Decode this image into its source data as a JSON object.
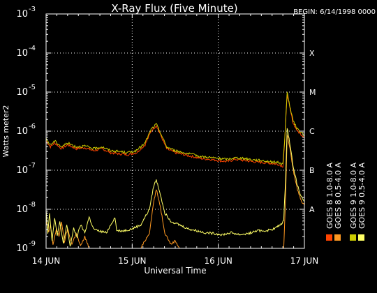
{
  "chart_data": {
    "type": "line",
    "title": "X-Ray Flux (Five Minute)",
    "begin_label": "BEGIN: 6/14/1998 0000",
    "xlabel": "Universal Time",
    "ylabel": "Watts meter2",
    "x_ticks": [
      {
        "day": 0,
        "label": "14 JUN"
      },
      {
        "day": 1,
        "label": "15 JUN"
      },
      {
        "day": 2,
        "label": "16 JUN"
      },
      {
        "day": 3,
        "label": "17 JUN"
      }
    ],
    "y_log_range": [
      -9,
      -3
    ],
    "y_ticks": [
      {
        "exp": -9,
        "base": "10",
        "power": "-9"
      },
      {
        "exp": -8,
        "base": "10",
        "power": "-8"
      },
      {
        "exp": -7,
        "base": "10",
        "power": "-7"
      },
      {
        "exp": -6,
        "base": "10",
        "power": "-6"
      },
      {
        "exp": -5,
        "base": "10",
        "power": "-5"
      },
      {
        "exp": -4,
        "base": "10",
        "power": "-4"
      },
      {
        "exp": -3,
        "base": "10",
        "power": "-3"
      }
    ],
    "flare_classes": [
      {
        "exp": -8,
        "label": "A"
      },
      {
        "exp": -7,
        "label": "B"
      },
      {
        "exp": -6,
        "label": "C"
      },
      {
        "exp": -5,
        "label": "M"
      },
      {
        "exp": -4,
        "label": "X"
      }
    ],
    "grid_y": [
      -8,
      -7,
      -6,
      -5,
      -4
    ],
    "grid_x_days": [
      1,
      2
    ],
    "legend": [
      {
        "label": "GOES 8  1.0-8.0 A",
        "color": "#ff4400"
      },
      {
        "label": "GOES 8  0.5-4.0 A",
        "color": "#ff9922"
      },
      {
        "label": "GOES 9  1.0-8.0 A",
        "color": "#cccc00"
      },
      {
        "label": "GOES 9  0.5-4.0 A",
        "color": "#ffff66"
      }
    ],
    "series": [
      {
        "name": "GOES 8  1.0-8.0 A",
        "color": "#ff4400",
        "points": [
          [
            0.0,
            -6.25
          ],
          [
            0.05,
            -6.4
          ],
          [
            0.1,
            -6.3
          ],
          [
            0.18,
            -6.45
          ],
          [
            0.25,
            -6.35
          ],
          [
            0.35,
            -6.45
          ],
          [
            0.45,
            -6.42
          ],
          [
            0.55,
            -6.5
          ],
          [
            0.65,
            -6.45
          ],
          [
            0.75,
            -6.55
          ],
          [
            0.85,
            -6.58
          ],
          [
            0.95,
            -6.6
          ],
          [
            1.05,
            -6.55
          ],
          [
            1.15,
            -6.35
          ],
          [
            1.22,
            -6.0
          ],
          [
            1.28,
            -5.85
          ],
          [
            1.32,
            -6.05
          ],
          [
            1.4,
            -6.45
          ],
          [
            1.5,
            -6.55
          ],
          [
            1.6,
            -6.6
          ],
          [
            1.7,
            -6.65
          ],
          [
            1.8,
            -6.7
          ],
          [
            1.9,
            -6.72
          ],
          [
            2.0,
            -6.75
          ],
          [
            2.1,
            -6.78
          ],
          [
            2.2,
            -6.72
          ],
          [
            2.3,
            -6.75
          ],
          [
            2.4,
            -6.78
          ],
          [
            2.5,
            -6.8
          ],
          [
            2.6,
            -6.82
          ],
          [
            2.7,
            -6.85
          ],
          [
            2.75,
            -6.9
          ],
          [
            2.77,
            -6.3
          ],
          [
            2.8,
            -5.05
          ],
          [
            2.83,
            -5.4
          ],
          [
            2.87,
            -5.8
          ],
          [
            2.92,
            -6.0
          ],
          [
            2.97,
            -6.1
          ],
          [
            3.0,
            -6.15
          ]
        ]
      },
      {
        "name": "GOES 8  0.5-4.0 A",
        "color": "#ff9922",
        "points": [
          [
            0.0,
            -8.3
          ],
          [
            0.03,
            -8.6
          ],
          [
            0.05,
            -8.4
          ],
          [
            0.08,
            -8.9
          ],
          [
            0.12,
            -8.5
          ],
          [
            0.15,
            -8.7
          ],
          [
            0.18,
            -8.3
          ],
          [
            0.21,
            -8.85
          ],
          [
            0.25,
            -8.5
          ],
          [
            0.3,
            -8.9
          ],
          [
            0.35,
            -8.6
          ],
          [
            0.4,
            -8.95
          ],
          [
            0.45,
            -8.7
          ],
          [
            0.5,
            -9.0
          ],
          [
            0.55,
            -9.0
          ],
          [
            1.0,
            -9.0
          ],
          [
            1.1,
            -9.0
          ],
          [
            1.2,
            -8.6
          ],
          [
            1.25,
            -7.8
          ],
          [
            1.28,
            -7.5
          ],
          [
            1.32,
            -7.85
          ],
          [
            1.38,
            -8.6
          ],
          [
            1.45,
            -8.9
          ],
          [
            1.5,
            -8.8
          ],
          [
            1.55,
            -9.0
          ],
          [
            1.6,
            -9.0
          ],
          [
            2.76,
            -9.0
          ],
          [
            2.78,
            -7.8
          ],
          [
            2.8,
            -6.1
          ],
          [
            2.83,
            -6.4
          ],
          [
            2.87,
            -7.0
          ],
          [
            2.92,
            -7.5
          ],
          [
            2.97,
            -7.8
          ],
          [
            3.0,
            -7.9
          ]
        ]
      },
      {
        "name": "GOES 9  1.0-8.0 A",
        "color": "#cccc00",
        "points": [
          [
            0.0,
            -6.2
          ],
          [
            0.05,
            -6.35
          ],
          [
            0.1,
            -6.25
          ],
          [
            0.18,
            -6.4
          ],
          [
            0.25,
            -6.3
          ],
          [
            0.35,
            -6.4
          ],
          [
            0.45,
            -6.38
          ],
          [
            0.55,
            -6.45
          ],
          [
            0.65,
            -6.4
          ],
          [
            0.75,
            -6.5
          ],
          [
            0.85,
            -6.52
          ],
          [
            0.95,
            -6.55
          ],
          [
            1.05,
            -6.5
          ],
          [
            1.15,
            -6.3
          ],
          [
            1.22,
            -5.95
          ],
          [
            1.28,
            -5.82
          ],
          [
            1.32,
            -6.0
          ],
          [
            1.4,
            -6.4
          ],
          [
            1.5,
            -6.5
          ],
          [
            1.6,
            -6.55
          ],
          [
            1.7,
            -6.6
          ],
          [
            1.8,
            -6.65
          ],
          [
            1.9,
            -6.67
          ],
          [
            2.0,
            -6.7
          ],
          [
            2.1,
            -6.72
          ],
          [
            2.2,
            -6.68
          ],
          [
            2.3,
            -6.7
          ],
          [
            2.4,
            -6.73
          ],
          [
            2.5,
            -6.75
          ],
          [
            2.6,
            -6.78
          ],
          [
            2.7,
            -6.8
          ],
          [
            2.75,
            -6.85
          ],
          [
            2.77,
            -6.25
          ],
          [
            2.8,
            -5.0
          ],
          [
            2.83,
            -5.35
          ],
          [
            2.87,
            -5.75
          ],
          [
            2.92,
            -5.95
          ],
          [
            2.97,
            -6.05
          ],
          [
            3.0,
            -6.1
          ]
        ]
      },
      {
        "name": "GOES 9  0.5-4.0 A",
        "color": "#ffff66",
        "points": [
          [
            0.0,
            -8.0
          ],
          [
            0.02,
            -8.6
          ],
          [
            0.04,
            -8.1
          ],
          [
            0.07,
            -8.8
          ],
          [
            0.1,
            -8.2
          ],
          [
            0.13,
            -8.7
          ],
          [
            0.16,
            -8.3
          ],
          [
            0.2,
            -8.9
          ],
          [
            0.24,
            -8.4
          ],
          [
            0.28,
            -8.95
          ],
          [
            0.32,
            -8.5
          ],
          [
            0.36,
            -8.7
          ],
          [
            0.4,
            -8.4
          ],
          [
            0.45,
            -8.6
          ],
          [
            0.5,
            -8.2
          ],
          [
            0.55,
            -8.5
          ],
          [
            0.6,
            -8.55
          ],
          [
            0.7,
            -8.6
          ],
          [
            0.8,
            -8.2
          ],
          [
            0.82,
            -8.55
          ],
          [
            0.9,
            -8.55
          ],
          [
            1.0,
            -8.5
          ],
          [
            1.1,
            -8.4
          ],
          [
            1.2,
            -8.0
          ],
          [
            1.25,
            -7.4
          ],
          [
            1.28,
            -7.25
          ],
          [
            1.32,
            -7.55
          ],
          [
            1.38,
            -8.1
          ],
          [
            1.45,
            -8.3
          ],
          [
            1.55,
            -8.4
          ],
          [
            1.65,
            -8.5
          ],
          [
            1.75,
            -8.55
          ],
          [
            1.85,
            -8.6
          ],
          [
            1.95,
            -8.62
          ],
          [
            2.05,
            -8.65
          ],
          [
            2.15,
            -8.6
          ],
          [
            2.25,
            -8.65
          ],
          [
            2.35,
            -8.62
          ],
          [
            2.45,
            -8.55
          ],
          [
            2.55,
            -8.55
          ],
          [
            2.65,
            -8.5
          ],
          [
            2.72,
            -8.4
          ],
          [
            2.76,
            -8.3
          ],
          [
            2.78,
            -7.3
          ],
          [
            2.8,
            -5.9
          ],
          [
            2.83,
            -6.3
          ],
          [
            2.87,
            -6.9
          ],
          [
            2.92,
            -7.4
          ],
          [
            2.97,
            -7.7
          ],
          [
            3.0,
            -7.8
          ]
        ]
      }
    ]
  }
}
